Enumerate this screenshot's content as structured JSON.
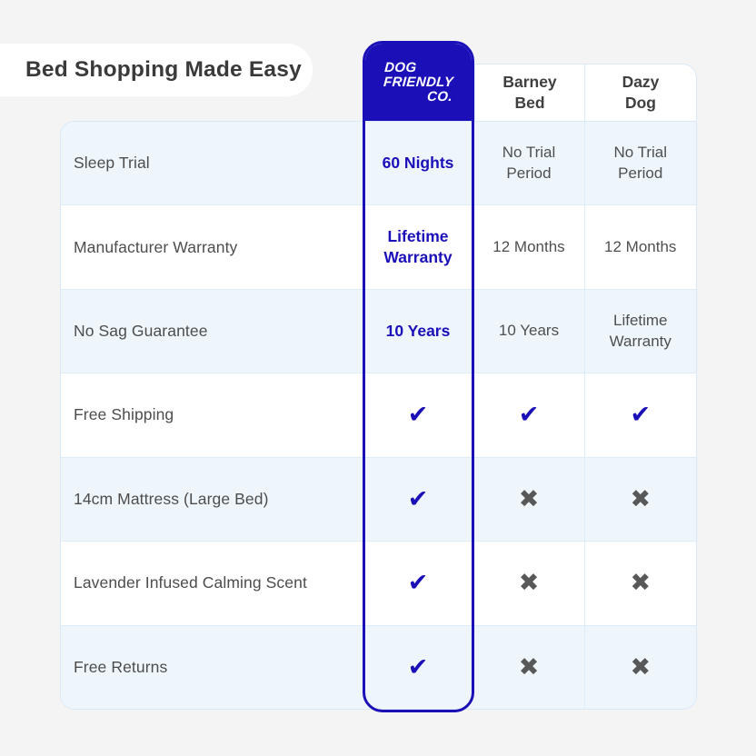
{
  "page": {
    "background": "#f4f4f5",
    "title": "Bed Shopping Made Easy"
  },
  "colors": {
    "brand_blue": "#1b10b8",
    "row_alt_blue": "#eef6fc",
    "table_border": "#d9e9f7",
    "text_gray": "#4d4d4d",
    "cross_gray": "#585858",
    "title_text": "#3a3a3a"
  },
  "brand": {
    "name": "Dog Friendly Co.",
    "logo_lines": {
      "0": "DOG",
      "1": "FRIENDLY",
      "2": "CO."
    }
  },
  "competitors": [
    {
      "lines": [
        "Barney",
        "Bed"
      ]
    },
    {
      "lines": [
        "Dazy",
        "Dog"
      ]
    }
  ],
  "icons": {
    "check": "✔",
    "cross": "✖"
  },
  "table": {
    "rows": [
      {
        "feature": "Sleep Trial",
        "cells": [
          {
            "text": "60 Nights"
          },
          {
            "text": "No Trial Period"
          },
          {
            "text": "No Trial Period"
          }
        ]
      },
      {
        "feature": "Manufacturer Warranty",
        "cells": [
          {
            "text": "Lifetime Warranty"
          },
          {
            "text": "12 Months"
          },
          {
            "text": "12 Months"
          }
        ]
      },
      {
        "feature": "No Sag Guarantee",
        "cells": [
          {
            "text": "10 Years"
          },
          {
            "text": "10 Years"
          },
          {
            "text": "Lifetime Warranty"
          }
        ]
      },
      {
        "feature": "Free Shipping",
        "cells": [
          {
            "icon": "check"
          },
          {
            "icon": "check"
          },
          {
            "icon": "check"
          }
        ]
      },
      {
        "feature": "14cm Mattress (Large Bed)",
        "cells": [
          {
            "icon": "check"
          },
          {
            "icon": "cross"
          },
          {
            "icon": "cross"
          }
        ]
      },
      {
        "feature": "Lavender Infused Calming Scent",
        "cells": [
          {
            "icon": "check"
          },
          {
            "icon": "cross"
          },
          {
            "icon": "cross"
          }
        ]
      },
      {
        "feature": "Free Returns",
        "cells": [
          {
            "icon": "check"
          },
          {
            "icon": "cross"
          },
          {
            "icon": "cross"
          }
        ]
      }
    ]
  },
  "chart_data": {
    "type": "table",
    "title": "Bed Shopping Made Easy",
    "columns": [
      "Feature",
      "Dog Friendly Co.",
      "Barney Bed",
      "Dazy Dog"
    ],
    "rows": [
      [
        "Sleep Trial",
        "60 Nights",
        "No Trial Period",
        "No Trial Period"
      ],
      [
        "Manufacturer Warranty",
        "Lifetime Warranty",
        "12 Months",
        "12 Months"
      ],
      [
        "No Sag Guarantee",
        "10 Years",
        "10 Years",
        "Lifetime Warranty"
      ],
      [
        "Free Shipping",
        "yes",
        "yes",
        "yes"
      ],
      [
        "14cm Mattress (Large Bed)",
        "yes",
        "no",
        "no"
      ],
      [
        "Lavender Infused Calming Scent",
        "yes",
        "no",
        "no"
      ],
      [
        "Free Returns",
        "yes",
        "no",
        "no"
      ]
    ],
    "highlighted_column": "Dog Friendly Co.",
    "legend_position": "none",
    "grid": true
  }
}
